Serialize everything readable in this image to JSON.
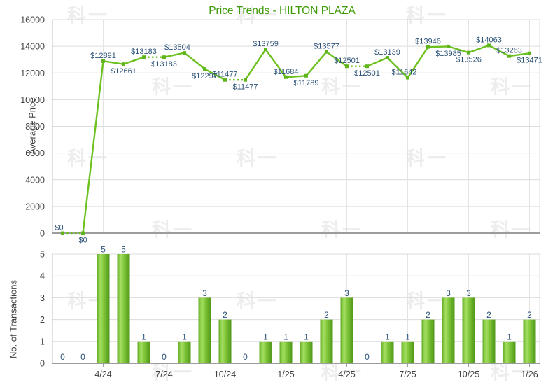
{
  "title": "Price Trends - HILTON PLAZA",
  "watermark_text": "科一",
  "colors": {
    "title": "#3f9b05",
    "line": "#6cc11f",
    "marker": "#5eb51c",
    "point_label": "#2b5277",
    "axis_text": "#3f3f3f",
    "grid": "#dcdcdc",
    "grid_vertical": "#e3e3e3",
    "plot_border": "#c2c2c2",
    "axis_line": "#9c9c9c",
    "tick_mark": "#9c9c9c",
    "watermark": "#ededed",
    "bar_gradient": [
      "#61a826",
      "#8ed14c",
      "#a6dd63",
      "#85cb3f",
      "#6db42c",
      "#4f9719"
    ]
  },
  "chart_data": [
    {
      "type": "line",
      "series_name": "average-price",
      "title": "Price Trends - HILTON PLAZA",
      "xlabel": "",
      "ylabel": "Average Price",
      "ylim": [
        0,
        16000
      ],
      "ytick_step": 2000,
      "grid": true,
      "legend": "none",
      "xtick_labels": [
        "4/24",
        "7/24",
        "10/24",
        "1/25",
        "4/25",
        "7/25",
        "10/25",
        "1/26"
      ],
      "xtick_index": [
        3,
        6,
        9,
        12,
        15,
        18,
        21,
        24
      ],
      "values": [
        0,
        0,
        12891,
        12661,
        13183,
        13183,
        13504,
        12297,
        11477,
        11477,
        13759,
        11684,
        11789,
        13577,
        12501,
        12501,
        13139,
        11642,
        13946,
        13985,
        13526,
        14063,
        13263,
        13471
      ],
      "point_labels": [
        "$0",
        "$0",
        "$12891",
        "$12661",
        "$13183",
        "$13183",
        "$13504",
        "$12297",
        "$11477",
        "$11477",
        "$13759",
        "$11684",
        "$11789",
        "$13577",
        "$12501",
        "$12501",
        "$13139",
        "$11642",
        "$13946",
        "$13985",
        "$13526",
        "$14063",
        "$13263",
        "$13471"
      ],
      "label_side": [
        "above",
        "below",
        "above",
        "below",
        "above",
        "below",
        "above",
        "below",
        "above",
        "below",
        "above",
        "above",
        "below",
        "above",
        "above",
        "below",
        "above",
        "above",
        "above",
        "below",
        "below",
        "above",
        "above",
        "below"
      ],
      "label_dx": [
        -5,
        0,
        0,
        0,
        0,
        0,
        -10,
        0,
        0,
        0,
        0,
        0,
        0,
        0,
        0,
        0,
        0,
        -5,
        0,
        0,
        0,
        0,
        0,
        0
      ],
      "dotted_segment_start_index": [
        1,
        5,
        9,
        15
      ]
    },
    {
      "type": "bar",
      "series_name": "transactions",
      "xlabel": "",
      "ylabel": "No. of Transactions",
      "ylim": [
        0,
        5
      ],
      "ytick_step": 1,
      "grid": true,
      "legend": "none",
      "xtick_labels": [
        "4/24",
        "7/24",
        "10/24",
        "1/25",
        "4/25",
        "7/25",
        "10/25",
        "1/26"
      ],
      "xtick_index": [
        3,
        6,
        9,
        12,
        15,
        18,
        21,
        24
      ],
      "values": [
        0,
        0,
        5,
        5,
        1,
        0,
        1,
        3,
        2,
        0,
        1,
        1,
        1,
        2,
        3,
        0,
        1,
        1,
        2,
        3,
        3,
        2,
        1,
        2
      ]
    }
  ]
}
